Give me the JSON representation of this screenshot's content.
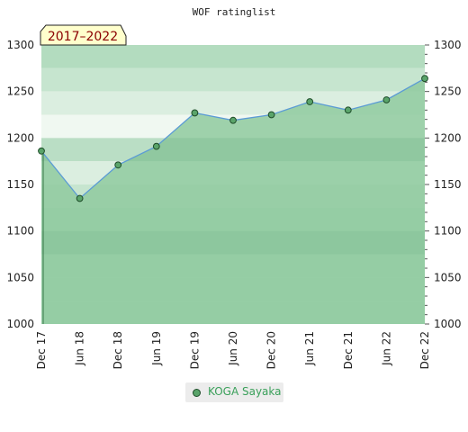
{
  "chart_data": {
    "type": "area",
    "title": "WOF ratinglist",
    "period_label": "2017–2022",
    "x": [
      "Dec 17",
      "Jun 18",
      "Dec 18",
      "Jun 19",
      "Dec 19",
      "Jun 20",
      "Dec 20",
      "Jun 21",
      "Dec 21",
      "Jun 22",
      "Dec 22"
    ],
    "series": [
      {
        "name": "KOGA Sayaka",
        "values": [
          1186,
          1135,
          1171,
          1191,
          1227,
          1219,
          1225,
          1239,
          1230,
          1241,
          1264
        ]
      }
    ],
    "ylim": [
      1000,
      1300
    ],
    "y_ticks": [
      1000,
      1050,
      1100,
      1150,
      1200,
      1250,
      1300
    ],
    "y_ticks_right": [
      1000,
      1050,
      1100,
      1150,
      1200,
      1250,
      1300
    ],
    "legend_position": "bottom-center",
    "colors": {
      "fill": "#8fca9f",
      "line": "#5b9bd5",
      "marker_fill": "#5aa46a",
      "marker_stroke": "#1f4d2a",
      "badge_bg": "#ffffcc"
    }
  }
}
